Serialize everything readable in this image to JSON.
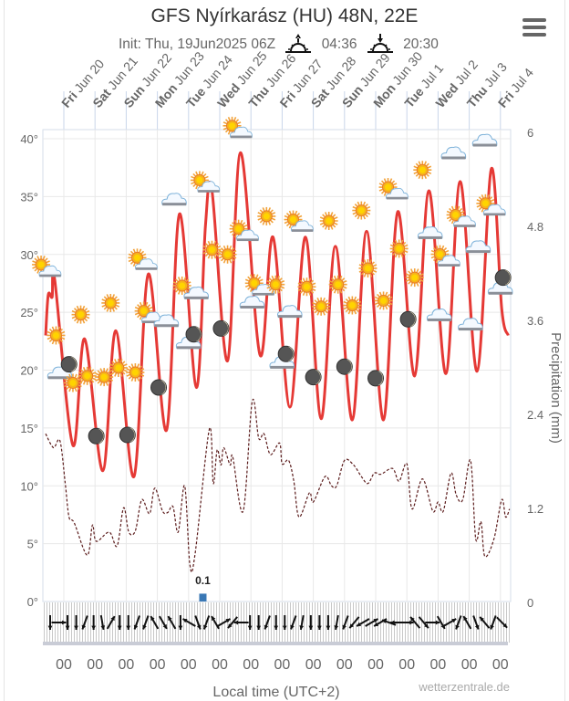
{
  "header": {
    "title": "GFS Nyírkarász (HU) 48N, 22E",
    "init": "Init: Thu, 19Jun2025 06Z",
    "sunrise": "04:36",
    "sunset": "20:30",
    "menu_icon": "hamburger-menu-icon"
  },
  "chart_data": {
    "type": "line",
    "xlabel": "Local time (UTC+2)",
    "ylabel_right": "Precipitation (mm)",
    "credit": "wetterzentrale.de",
    "grid": true,
    "colors": {
      "temperature": "#e53935",
      "dewpoint": "#5a1a1a",
      "precipitation": "#3a78b5",
      "grid": "#e8e8e8",
      "day_ticks": "#c9d6ea"
    },
    "x_range": [
      "2025-06-19T07:30",
      "2025-07-04T08:00"
    ],
    "y_left": {
      "range": [
        0,
        40
      ],
      "ticks": [
        "0°",
        "5°",
        "10°",
        "15°",
        "20°",
        "25°",
        "30°",
        "35°",
        "40°"
      ],
      "values": [
        0,
        5,
        10,
        15,
        20,
        25,
        30,
        35,
        40
      ]
    },
    "y_right": {
      "range": [
        0,
        6
      ],
      "ticks": [
        "0",
        "1.2",
        "2.4",
        "3.6",
        "4.8",
        "6"
      ],
      "values": [
        0,
        1.2,
        2.4,
        3.6,
        4.8,
        6
      ]
    },
    "days": [
      {
        "day": "Fri",
        "date": "Jun 20",
        "t": "2025-06-20T00:00"
      },
      {
        "day": "Sat",
        "date": "Jun 21",
        "t": "2025-06-21T00:00"
      },
      {
        "day": "Sun",
        "date": "Jun 22",
        "t": "2025-06-22T00:00"
      },
      {
        "day": "Mon",
        "date": "Jun 23",
        "t": "2025-06-23T00:00"
      },
      {
        "day": "Tue",
        "date": "Jun 24",
        "t": "2025-06-24T00:00"
      },
      {
        "day": "Wed",
        "date": "Jun 25",
        "t": "2025-06-25T00:00"
      },
      {
        "day": "Thu",
        "date": "Jun 26",
        "t": "2025-06-26T00:00"
      },
      {
        "day": "Fri",
        "date": "Jun 27",
        "t": "2025-06-27T00:00"
      },
      {
        "day": "Sat",
        "date": "Jun 28",
        "t": "2025-06-28T00:00"
      },
      {
        "day": "Sun",
        "date": "Jun 29",
        "t": "2025-06-29T00:00"
      },
      {
        "day": "Mon",
        "date": "Jun 30",
        "t": "2025-06-30T00:00"
      },
      {
        "day": "Tue",
        "date": "Jul 1",
        "t": "2025-07-01T00:00"
      },
      {
        "day": "Wed",
        "date": "Jul 2",
        "t": "2025-07-02T00:00"
      },
      {
        "day": "Thu",
        "date": "Jul 3",
        "t": "2025-07-03T00:00"
      },
      {
        "day": "Fri",
        "date": "Jul 4",
        "t": "2025-07-04T00:00"
      }
    ],
    "hour_label": "00",
    "series": [
      {
        "key": "temperature",
        "style": "solid",
        "points": [
          [
            "2025-06-19T10:00",
            23.0
          ],
          [
            "2025-06-19T12:00",
            26.5
          ],
          [
            "2025-06-19T15:00",
            26.3
          ],
          [
            "2025-06-19T17:00",
            27.8
          ],
          [
            "2025-06-20T07:00",
            13.5
          ],
          [
            "2025-06-20T16:00",
            22.7
          ],
          [
            "2025-06-21T06:00",
            11.3
          ],
          [
            "2025-06-21T16:00",
            23.4
          ],
          [
            "2025-06-22T06:00",
            10.8
          ],
          [
            "2025-06-22T17:00",
            28.3
          ],
          [
            "2025-06-23T07:00",
            14.8
          ],
          [
            "2025-06-23T17:00",
            33.5
          ],
          [
            "2025-06-24T06:00",
            18.5
          ],
          [
            "2025-06-24T13:00",
            32.5
          ],
          [
            "2025-06-24T18:00",
            35.5
          ],
          [
            "2025-06-25T06:00",
            20.8
          ],
          [
            "2025-06-25T16:00",
            38.8
          ],
          [
            "2025-06-26T07:00",
            21.3
          ],
          [
            "2025-06-26T17:00",
            31.5
          ],
          [
            "2025-06-27T06:00",
            16.8
          ],
          [
            "2025-06-27T18:00",
            31.5
          ],
          [
            "2025-06-28T06:00",
            15.8
          ],
          [
            "2025-06-28T17:00",
            30.7
          ],
          [
            "2025-06-29T06:00",
            15.7
          ],
          [
            "2025-06-29T17:00",
            32.0
          ],
          [
            "2025-06-30T06:00",
            15.7
          ],
          [
            "2025-06-30T17:00",
            33.7
          ],
          [
            "2025-07-01T06:00",
            19.5
          ],
          [
            "2025-07-01T17:00",
            35.5
          ],
          [
            "2025-07-02T06:00",
            19.7
          ],
          [
            "2025-07-02T17:00",
            36.3
          ],
          [
            "2025-07-03T06:00",
            19.9
          ],
          [
            "2025-07-03T17:00",
            37.4
          ],
          [
            "2025-07-04T01:00",
            25.3
          ],
          [
            "2025-07-04T06:00",
            23.0
          ]
        ]
      },
      {
        "key": "dewpoint",
        "style": "dashed",
        "points": [
          [
            "2025-06-19T10:00",
            14.5
          ],
          [
            "2025-06-19T16:00",
            13.3
          ],
          [
            "2025-06-19T21:00",
            13.9
          ],
          [
            "2025-06-20T01:00",
            10.3
          ],
          [
            "2025-06-20T04:00",
            7.3
          ],
          [
            "2025-06-20T08:00",
            6.8
          ],
          [
            "2025-06-20T18:00",
            4.0
          ],
          [
            "2025-06-20T22:00",
            6.6
          ],
          [
            "2025-06-21T01:00",
            5.2
          ],
          [
            "2025-06-21T11:00",
            6.0
          ],
          [
            "2025-06-21T17:00",
            4.8
          ],
          [
            "2025-06-21T22:00",
            8.1
          ],
          [
            "2025-06-22T02:00",
            6.0
          ],
          [
            "2025-06-22T07:00",
            6.1
          ],
          [
            "2025-06-22T12:00",
            8.8
          ],
          [
            "2025-06-22T18:00",
            7.6
          ],
          [
            "2025-06-22T22:00",
            9.8
          ],
          [
            "2025-06-23T04:00",
            7.8
          ],
          [
            "2025-06-23T08:00",
            7.7
          ],
          [
            "2025-06-23T12:00",
            8.2
          ],
          [
            "2025-06-23T16:00",
            6.0
          ],
          [
            "2025-06-23T21:00",
            10.0
          ],
          [
            "2025-06-24T01:00",
            3.2
          ],
          [
            "2025-06-24T05:00",
            4.1
          ],
          [
            "2025-06-24T16:00",
            14.9
          ],
          [
            "2025-06-24T19:00",
            10.2
          ],
          [
            "2025-06-24T22:00",
            13.1
          ],
          [
            "2025-06-25T01:00",
            11.8
          ],
          [
            "2025-06-25T03:00",
            13.3
          ],
          [
            "2025-06-25T08:00",
            11.8
          ],
          [
            "2025-06-25T10:00",
            12.5
          ],
          [
            "2025-06-25T18:00",
            7.8
          ],
          [
            "2025-06-26T01:00",
            17.3
          ],
          [
            "2025-06-26T06:00",
            14.1
          ],
          [
            "2025-06-26T10:00",
            14.5
          ],
          [
            "2025-06-26T15:00",
            12.7
          ],
          [
            "2025-06-26T22:00",
            13.7
          ],
          [
            "2025-06-27T00:00",
            11.9
          ],
          [
            "2025-06-27T05:00",
            12.2
          ],
          [
            "2025-06-27T09:00",
            10.4
          ],
          [
            "2025-06-27T13:00",
            7.3
          ],
          [
            "2025-06-27T21:00",
            9.4
          ],
          [
            "2025-06-28T00:00",
            8.6
          ],
          [
            "2025-06-28T09:00",
            10.8
          ],
          [
            "2025-06-28T14:00",
            10.0
          ],
          [
            "2025-06-28T18:00",
            10.0
          ],
          [
            "2025-06-29T00:00",
            12.2
          ],
          [
            "2025-06-29T07:00",
            11.8
          ],
          [
            "2025-06-29T13:00",
            10.8
          ],
          [
            "2025-06-29T18:00",
            10.2
          ],
          [
            "2025-06-29T23:00",
            11.1
          ],
          [
            "2025-06-30T04:00",
            11.0
          ],
          [
            "2025-06-30T13:00",
            11.5
          ],
          [
            "2025-06-30T18:00",
            10.4
          ],
          [
            "2025-07-01T00:00",
            11.9
          ],
          [
            "2025-07-01T04:00",
            8.0
          ],
          [
            "2025-07-01T12:00",
            10.6
          ],
          [
            "2025-07-01T20:00",
            7.8
          ],
          [
            "2025-07-02T00:00",
            8.6
          ],
          [
            "2025-07-02T04:00",
            7.8
          ],
          [
            "2025-07-02T10:00",
            11.1
          ],
          [
            "2025-07-02T14:00",
            9.2
          ],
          [
            "2025-07-02T19:00",
            8.8
          ],
          [
            "2025-07-03T01:00",
            12.2
          ],
          [
            "2025-07-03T05:00",
            5.4
          ],
          [
            "2025-07-03T09:00",
            6.9
          ],
          [
            "2025-07-03T12:00",
            3.9
          ],
          [
            "2025-07-03T19:00",
            5.4
          ],
          [
            "2025-07-04T01:00",
            8.8
          ],
          [
            "2025-07-04T04:00",
            7.3
          ],
          [
            "2025-07-04T07:00",
            8.0
          ]
        ]
      }
    ],
    "precipitation": [
      {
        "t": "2025-06-24T11:00",
        "value": 0.1,
        "label": "0.1"
      }
    ],
    "weather_icons": [
      [
        "2025-06-19T10:00",
        28.8,
        "sun-cloud"
      ],
      [
        "2025-06-19T18:00",
        23.0,
        "sun"
      ],
      [
        "2025-06-19T21:00",
        19.7,
        "cloud"
      ],
      [
        "2025-06-20T04:00",
        20.5,
        "moon"
      ],
      [
        "2025-06-20T07:00",
        18.9,
        "sun"
      ],
      [
        "2025-06-20T13:00",
        24.8,
        "sun"
      ],
      [
        "2025-06-20T18:00",
        19.5,
        "sun"
      ],
      [
        "2025-06-21T01:00",
        14.3,
        "moon"
      ],
      [
        "2025-06-21T07:00",
        19.4,
        "sun"
      ],
      [
        "2025-06-21T12:00",
        25.8,
        "sun"
      ],
      [
        "2025-06-21T18:00",
        20.2,
        "sun"
      ],
      [
        "2025-06-22T01:00",
        14.4,
        "moon"
      ],
      [
        "2025-06-22T07:00",
        19.8,
        "sun"
      ],
      [
        "2025-06-22T12:00",
        29.4,
        "sun-cloud"
      ],
      [
        "2025-06-22T17:00",
        24.8,
        "sun-cloud"
      ],
      [
        "2025-06-23T01:00",
        18.5,
        "moon"
      ],
      [
        "2025-06-23T07:00",
        24.2,
        "cloud"
      ],
      [
        "2025-06-23T13:00",
        34.7,
        "cloud"
      ],
      [
        "2025-06-23T19:00",
        27.3,
        "sun"
      ],
      [
        "2025-06-24T00:00",
        22.3,
        "cloud"
      ],
      [
        "2025-06-24T04:00",
        23.1,
        "moon"
      ],
      [
        "2025-06-24T06:00",
        26.6,
        "cloud"
      ],
      [
        "2025-06-24T12:00",
        36.1,
        "sun-cloud"
      ],
      [
        "2025-06-24T18:00",
        30.4,
        "sun"
      ],
      [
        "2025-06-25T01:00",
        23.6,
        "moon"
      ],
      [
        "2025-06-25T06:00",
        30.0,
        "sun"
      ],
      [
        "2025-06-25T13:00",
        40.8,
        "sun-cloud"
      ],
      [
        "2025-06-25T18:00",
        31.9,
        "sun-cloud"
      ],
      [
        "2025-06-26T01:00",
        25.8,
        "cloud"
      ],
      [
        "2025-06-26T06:00",
        27.2,
        "sun-cloud"
      ],
      [
        "2025-06-26T12:00",
        33.3,
        "sun"
      ],
      [
        "2025-06-26T19:00",
        27.4,
        "sun"
      ],
      [
        "2025-06-27T00:00",
        20.6,
        "cloud"
      ],
      [
        "2025-06-27T03:00",
        21.4,
        "moon"
      ],
      [
        "2025-06-27T06:00",
        25.0,
        "cloud"
      ],
      [
        "2025-06-27T12:00",
        32.7,
        "sun-cloud"
      ],
      [
        "2025-06-27T19:00",
        27.2,
        "sun"
      ],
      [
        "2025-06-28T00:00",
        19.4,
        "moon"
      ],
      [
        "2025-06-28T06:00",
        25.5,
        "sun"
      ],
      [
        "2025-06-28T12:00",
        32.9,
        "sun"
      ],
      [
        "2025-06-28T19:00",
        27.4,
        "sun"
      ],
      [
        "2025-06-29T00:00",
        20.3,
        "moon"
      ],
      [
        "2025-06-29T06:00",
        25.6,
        "sun"
      ],
      [
        "2025-06-29T13:00",
        33.8,
        "sun"
      ],
      [
        "2025-06-29T18:00",
        28.8,
        "sun"
      ],
      [
        "2025-06-30T00:00",
        19.3,
        "moon"
      ],
      [
        "2025-06-30T06:00",
        26.0,
        "sun"
      ],
      [
        "2025-06-30T13:00",
        35.5,
        "sun-cloud"
      ],
      [
        "2025-06-30T18:00",
        30.5,
        "sun"
      ],
      [
        "2025-07-01T01:00",
        24.4,
        "moon"
      ],
      [
        "2025-07-01T06:00",
        28.0,
        "sun"
      ],
      [
        "2025-07-01T12:00",
        37.3,
        "sun"
      ],
      [
        "2025-07-01T18:00",
        31.8,
        "cloud"
      ],
      [
        "2025-07-02T01:00",
        24.7,
        "cloud"
      ],
      [
        "2025-07-02T05:00",
        29.7,
        "sun-cloud"
      ],
      [
        "2025-07-02T12:00",
        38.7,
        "cloud"
      ],
      [
        "2025-07-02T17:00",
        33.1,
        "sun-cloud"
      ],
      [
        "2025-07-03T01:00",
        23.9,
        "cloud"
      ],
      [
        "2025-07-03T07:00",
        30.6,
        "cloud"
      ],
      [
        "2025-07-03T12:00",
        39.8,
        "cloud"
      ],
      [
        "2025-07-03T16:00",
        34.1,
        "sun-cloud"
      ],
      [
        "2025-07-04T00:00",
        27.0,
        "cloud"
      ],
      [
        "2025-07-04T02:00",
        28.0,
        "moon"
      ]
    ],
    "wind_arrow_directions_deg": [
      180,
      90,
      180,
      180,
      200,
      180,
      170,
      30,
      180,
      180,
      200,
      200,
      330,
      150,
      330,
      180,
      300,
      160,
      200,
      330,
      60,
      220,
      270,
      180,
      180,
      200,
      180,
      180,
      200,
      190,
      180,
      180,
      180,
      190,
      200,
      220,
      240,
      60,
      240,
      290,
      270,
      90,
      320,
      140,
      90,
      150,
      60,
      200,
      330,
      160,
      320,
      200,
      135
    ]
  }
}
